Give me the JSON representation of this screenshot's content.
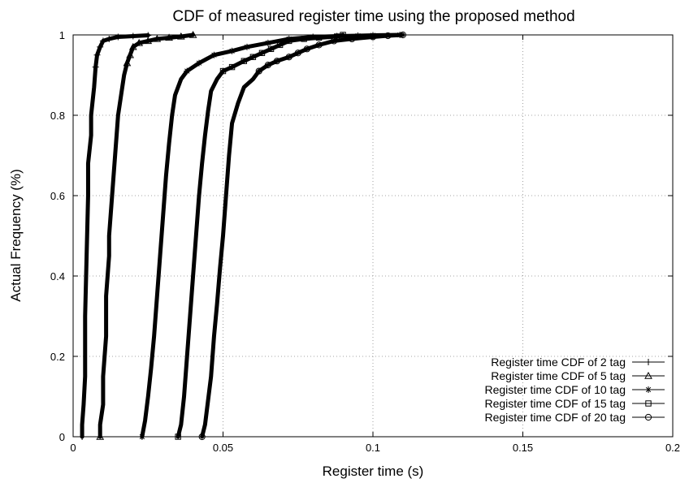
{
  "chart_data": {
    "type": "line",
    "title": "CDF of measured register time using the proposed method",
    "xlabel": "Register time (s)",
    "ylabel": "Actual Frequency (%)",
    "xlim": [
      0,
      0.2
    ],
    "ylim": [
      0,
      1
    ],
    "xticks": [
      0,
      0.05,
      0.1,
      0.15,
      0.2
    ],
    "xtick_labels": [
      "0",
      "0.05",
      "0.1",
      "0.15",
      "0.2"
    ],
    "yticks": [
      0,
      0.2,
      0.4,
      0.6,
      0.8,
      1
    ],
    "ytick_labels": [
      "0",
      "0.2",
      "0.4",
      "0.6",
      "0.8",
      "1"
    ],
    "grid": true,
    "legend_position": "bottom-right",
    "series": [
      {
        "name": "Register time CDF of 2 tag",
        "marker": "plus",
        "points": [
          [
            0.003,
            0.0
          ],
          [
            0.003,
            0.03
          ],
          [
            0.0035,
            0.08
          ],
          [
            0.004,
            0.15
          ],
          [
            0.004,
            0.3
          ],
          [
            0.0045,
            0.45
          ],
          [
            0.005,
            0.6
          ],
          [
            0.005,
            0.68
          ],
          [
            0.006,
            0.75
          ],
          [
            0.006,
            0.8
          ],
          [
            0.007,
            0.87
          ],
          [
            0.0075,
            0.92
          ],
          [
            0.008,
            0.95
          ],
          [
            0.009,
            0.97
          ],
          [
            0.01,
            0.985
          ],
          [
            0.012,
            0.99
          ],
          [
            0.015,
            0.995
          ],
          [
            0.02,
            0.997
          ],
          [
            0.025,
            0.999
          ]
        ]
      },
      {
        "name": "Register time CDF of 5 tag",
        "marker": "triangle",
        "points": [
          [
            0.009,
            0.0
          ],
          [
            0.009,
            0.03
          ],
          [
            0.01,
            0.08
          ],
          [
            0.01,
            0.15
          ],
          [
            0.011,
            0.25
          ],
          [
            0.011,
            0.35
          ],
          [
            0.012,
            0.45
          ],
          [
            0.012,
            0.5
          ],
          [
            0.013,
            0.6
          ],
          [
            0.014,
            0.7
          ],
          [
            0.015,
            0.8
          ],
          [
            0.016,
            0.85
          ],
          [
            0.017,
            0.9
          ],
          [
            0.018,
            0.93
          ],
          [
            0.019,
            0.95
          ],
          [
            0.02,
            0.97
          ],
          [
            0.022,
            0.98
          ],
          [
            0.025,
            0.985
          ],
          [
            0.028,
            0.99
          ],
          [
            0.032,
            0.993
          ],
          [
            0.036,
            0.996
          ],
          [
            0.04,
            1.0
          ]
        ]
      },
      {
        "name": "Register time CDF of 10 tag",
        "marker": "star",
        "points": [
          [
            0.023,
            0.0
          ],
          [
            0.024,
            0.04
          ],
          [
            0.025,
            0.1
          ],
          [
            0.026,
            0.17
          ],
          [
            0.027,
            0.25
          ],
          [
            0.028,
            0.35
          ],
          [
            0.029,
            0.45
          ],
          [
            0.03,
            0.55
          ],
          [
            0.031,
            0.65
          ],
          [
            0.032,
            0.73
          ],
          [
            0.033,
            0.8
          ],
          [
            0.034,
            0.85
          ],
          [
            0.036,
            0.89
          ],
          [
            0.038,
            0.91
          ],
          [
            0.042,
            0.93
          ],
          [
            0.047,
            0.95
          ],
          [
            0.053,
            0.96
          ],
          [
            0.058,
            0.97
          ],
          [
            0.065,
            0.98
          ],
          [
            0.072,
            0.99
          ],
          [
            0.08,
            0.995
          ],
          [
            0.088,
            0.997
          ],
          [
            0.095,
            0.998
          ],
          [
            0.1,
            0.999
          ],
          [
            0.109,
            1.0
          ]
        ]
      },
      {
        "name": "Register time CDF of 15 tag",
        "marker": "square",
        "points": [
          [
            0.035,
            0.0
          ],
          [
            0.036,
            0.03
          ],
          [
            0.037,
            0.1
          ],
          [
            0.038,
            0.2
          ],
          [
            0.039,
            0.3
          ],
          [
            0.04,
            0.4
          ],
          [
            0.041,
            0.5
          ],
          [
            0.042,
            0.6
          ],
          [
            0.043,
            0.68
          ],
          [
            0.044,
            0.75
          ],
          [
            0.045,
            0.81
          ],
          [
            0.046,
            0.86
          ],
          [
            0.048,
            0.89
          ],
          [
            0.05,
            0.91
          ],
          [
            0.053,
            0.92
          ],
          [
            0.057,
            0.935
          ],
          [
            0.06,
            0.945
          ],
          [
            0.063,
            0.955
          ],
          [
            0.066,
            0.965
          ],
          [
            0.069,
            0.975
          ],
          [
            0.072,
            0.985
          ],
          [
            0.077,
            0.99
          ],
          [
            0.082,
            0.993
          ],
          [
            0.088,
            0.996
          ],
          [
            0.09,
            1.0
          ]
        ]
      },
      {
        "name": "Register time CDF of 20 tag",
        "marker": "circle",
        "points": [
          [
            0.043,
            0.0
          ],
          [
            0.044,
            0.03
          ],
          [
            0.045,
            0.09
          ],
          [
            0.046,
            0.15
          ],
          [
            0.047,
            0.25
          ],
          [
            0.048,
            0.33
          ],
          [
            0.049,
            0.42
          ],
          [
            0.05,
            0.5
          ],
          [
            0.051,
            0.6
          ],
          [
            0.052,
            0.7
          ],
          [
            0.053,
            0.78
          ],
          [
            0.055,
            0.83
          ],
          [
            0.057,
            0.87
          ],
          [
            0.06,
            0.89
          ],
          [
            0.062,
            0.91
          ],
          [
            0.065,
            0.925
          ],
          [
            0.068,
            0.935
          ],
          [
            0.072,
            0.945
          ],
          [
            0.075,
            0.955
          ],
          [
            0.078,
            0.965
          ],
          [
            0.082,
            0.975
          ],
          [
            0.087,
            0.985
          ],
          [
            0.093,
            0.99
          ],
          [
            0.1,
            0.995
          ],
          [
            0.105,
            0.998
          ],
          [
            0.11,
            1.0
          ]
        ]
      }
    ]
  }
}
